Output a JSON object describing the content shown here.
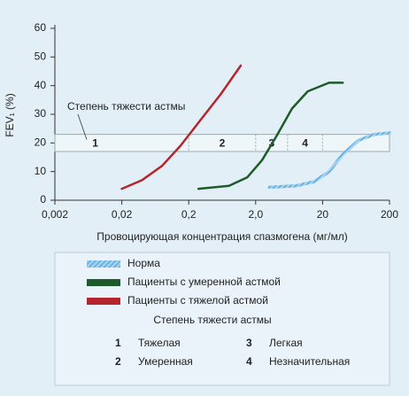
{
  "chart_data": {
    "type": "line",
    "x_label": "Провоцирующая концентрация спазмогена (мг/мл)",
    "y_label": "FEV₁ (%)",
    "log_x": true,
    "xlim": [
      0.002,
      200
    ],
    "xticks": [
      {
        "value": 0.002,
        "label": "0,002"
      },
      {
        "value": 0.02,
        "label": "0,02"
      },
      {
        "value": 0.2,
        "label": "0,2"
      },
      {
        "value": 2,
        "label": "2,0"
      },
      20,
      200
    ],
    "ylim": [
      0,
      60
    ],
    "yticks": [
      0,
      10,
      20,
      30,
      40,
      50,
      60
    ],
    "series": [
      {
        "name": "Норма",
        "color": "#4a9fd4",
        "hatched": true,
        "x": [
          3.2,
          8,
          15,
          25,
          40,
          70,
          120,
          200
        ],
        "values": [
          4.5,
          5,
          6.5,
          10,
          16,
          21,
          23,
          23.5
        ]
      },
      {
        "name": "Пациенты с умеренной астмой",
        "color": "#1e5a2a",
        "x": [
          0.28,
          0.8,
          1.5,
          2.5,
          4,
          7,
          12,
          25,
          40
        ],
        "values": [
          4,
          5,
          8,
          14,
          22,
          32,
          38,
          41,
          41
        ]
      },
      {
        "name": "Пациенты с тяжелой астмой",
        "color": "#b5252e",
        "x": [
          0.02,
          0.04,
          0.08,
          0.15,
          0.3,
          0.6,
          1.2
        ],
        "values": [
          4,
          7,
          12,
          19,
          28,
          37,
          47
        ]
      }
    ],
    "band": {
      "label": "Степень тяжести астмы",
      "ylim": [
        17,
        23
      ],
      "xlim": [
        0.002,
        200
      ],
      "segments": [
        {
          "label": "1",
          "x": [
            0.002,
            0.2
          ]
        },
        {
          "label": "2",
          "x": [
            0.2,
            2
          ]
        },
        {
          "label": "3",
          "x": [
            2,
            6
          ]
        },
        {
          "label": "4",
          "x": [
            6,
            20
          ]
        }
      ]
    },
    "severity_key": {
      "title": "Степень тяжести астмы",
      "items": [
        {
          "number": "1",
          "label": "Тяжелая"
        },
        {
          "number": "2",
          "label": "Умеренная"
        },
        {
          "number": "3",
          "label": "Легкая"
        },
        {
          "number": "4",
          "label": "Незначительная"
        }
      ]
    }
  }
}
